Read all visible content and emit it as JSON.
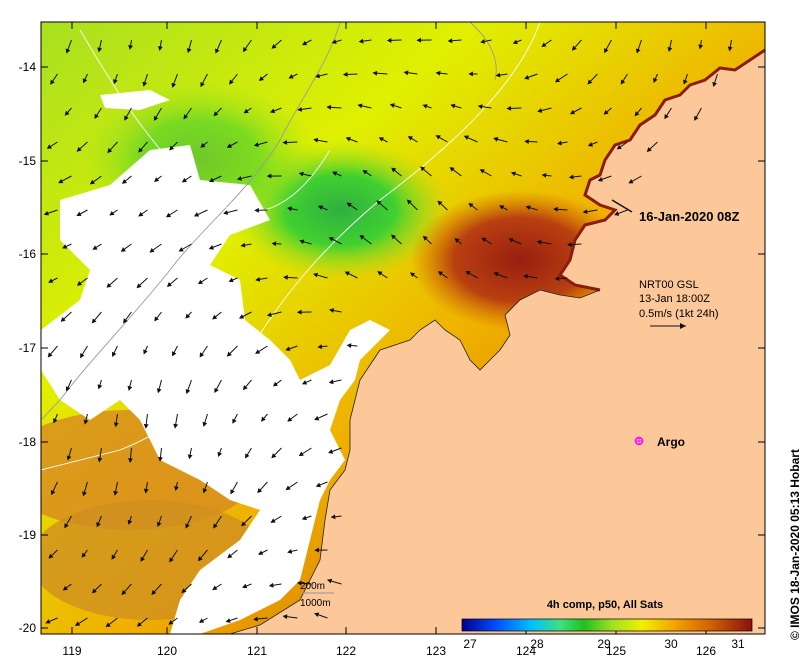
{
  "map": {
    "lat_ticks": [
      "-14",
      "-15",
      "-16",
      "-17",
      "-18",
      "-19",
      "-20"
    ],
    "lon_ticks": [
      "119",
      "120",
      "121",
      "122",
      "123",
      "124",
      "125",
      "126"
    ],
    "timestamp_label": "16-Jan-2020 08Z",
    "current_info": {
      "line1": "NRT00 GSL",
      "line2": "13-Jan 18:00Z",
      "line3": "0.5m/s (1kt 24h)"
    },
    "argo_label": "Argo",
    "contour_legend": {
      "line1": "200m",
      "line2": "1000m"
    },
    "colorbar": {
      "title": "4h comp, p50, All Sats",
      "ticks": [
        "27",
        "28",
        "29",
        "30",
        "31"
      ],
      "colors": [
        "#00008f",
        "#0050ff",
        "#00c0ff",
        "#40e080",
        "#20c020",
        "#a0e020",
        "#f0f000",
        "#f0a000",
        "#d06000",
        "#8a1010"
      ]
    },
    "credit": "© IMOS 18-Jan-2020 05:13 Hobart",
    "colors": {
      "land": "#fcc89a",
      "nodata": "#ffffff",
      "argo_marker": "#ff00ff"
    }
  }
}
